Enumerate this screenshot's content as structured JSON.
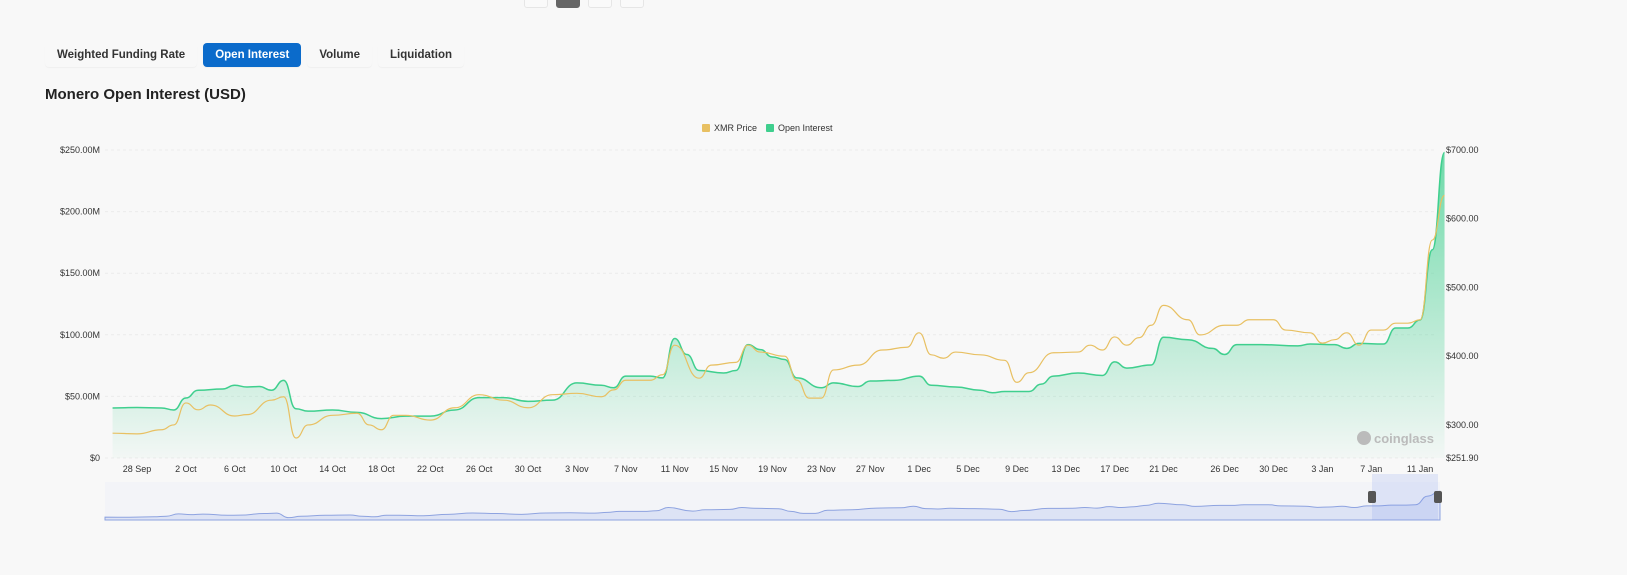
{
  "tabs": [
    {
      "label": "Weighted Funding Rate",
      "active": false
    },
    {
      "label": "Open Interest",
      "active": true
    },
    {
      "label": "Volume",
      "active": false
    },
    {
      "label": "Liquidation",
      "active": false
    }
  ],
  "title": "Monero Open Interest (USD)",
  "watermark": "coinglass",
  "chart_data": {
    "type": "area+line",
    "legend_position": "top-center",
    "series": [
      {
        "name": "XMR Price",
        "type": "line",
        "axis": "right",
        "color": "#e8c062",
        "points": [
          [
            "26 Sep",
            288
          ],
          [
            "28 Sep",
            287
          ],
          [
            "30 Sep",
            293
          ],
          [
            "1 Oct",
            300
          ],
          [
            "2 Oct",
            332
          ],
          [
            "3 Oct",
            322
          ],
          [
            "4 Oct",
            329
          ],
          [
            "6 Oct",
            313
          ],
          [
            "7 Oct",
            315
          ],
          [
            "9 Oct",
            336
          ],
          [
            "10 Oct",
            341
          ],
          [
            "11 Oct",
            281
          ],
          [
            "12 Oct",
            300
          ],
          [
            "14 Oct",
            314
          ],
          [
            "16 Oct",
            317
          ],
          [
            "17 Oct",
            300
          ],
          [
            "18 Oct",
            293
          ],
          [
            "19 Oct",
            314
          ],
          [
            "20 Oct",
            314
          ],
          [
            "22 Oct",
            307
          ],
          [
            "24 Oct",
            325
          ],
          [
            "26 Oct",
            344
          ],
          [
            "28 Oct",
            336
          ],
          [
            "30 Oct",
            325
          ],
          [
            "1 Nov",
            344
          ],
          [
            "3 Nov",
            346
          ],
          [
            "5 Nov",
            341
          ],
          [
            "6 Nov",
            351
          ],
          [
            "7 Nov",
            365
          ],
          [
            "9 Nov",
            365
          ],
          [
            "10 Nov",
            373
          ],
          [
            "11 Nov",
            416
          ],
          [
            "13 Nov",
            368
          ],
          [
            "14 Nov",
            387
          ],
          [
            "16 Nov",
            391
          ],
          [
            "17 Nov",
            416
          ],
          [
            "18 Nov",
            406
          ],
          [
            "20 Nov",
            400
          ],
          [
            "21 Nov",
            365
          ],
          [
            "22 Nov",
            339
          ],
          [
            "23 Nov",
            339
          ],
          [
            "24 Nov",
            380
          ],
          [
            "26 Nov",
            387
          ],
          [
            "28 Nov",
            409
          ],
          [
            "30 Nov",
            413
          ],
          [
            "1 Dec",
            434
          ],
          [
            "2 Dec",
            402
          ],
          [
            "3 Dec",
            397
          ],
          [
            "4 Dec",
            406
          ],
          [
            "6 Dec",
            402
          ],
          [
            "8 Dec",
            394
          ],
          [
            "9 Dec",
            362
          ],
          [
            "10 Dec",
            376
          ],
          [
            "12 Dec",
            405
          ],
          [
            "14 Dec",
            406
          ],
          [
            "15 Dec",
            416
          ],
          [
            "16 Dec",
            409
          ],
          [
            "17 Dec",
            428
          ],
          [
            "18 Dec",
            416
          ],
          [
            "19 Dec",
            427
          ],
          [
            "20 Dec",
            445
          ],
          [
            "21 Dec",
            474
          ],
          [
            "23 Dec",
            453
          ],
          [
            "24 Dec",
            431
          ],
          [
            "26 Dec",
            445
          ],
          [
            "27 Dec",
            445
          ],
          [
            "28 Dec",
            453
          ],
          [
            "30 Dec",
            453
          ],
          [
            "31 Dec",
            438
          ],
          [
            "2 Jan",
            434
          ],
          [
            "3 Jan",
            419
          ],
          [
            "4 Jan",
            424
          ],
          [
            "5 Jan",
            434
          ],
          [
            "6 Jan",
            416
          ],
          [
            "7 Jan",
            438
          ],
          [
            "8 Jan",
            438
          ],
          [
            "9 Jan",
            448
          ],
          [
            "10 Jan",
            448
          ],
          [
            "11 Jan",
            453
          ],
          [
            "12 Jan",
            569
          ],
          [
            "13 Jan",
            634
          ]
        ]
      },
      {
        "name": "Open Interest",
        "type": "area",
        "axis": "left",
        "color": "#3fcf8e",
        "points": [
          [
            "26 Sep",
            40.6
          ],
          [
            "28 Sep",
            41
          ],
          [
            "30 Sep",
            40.6
          ],
          [
            "1 Oct",
            39
          ],
          [
            "2 Oct",
            48.7
          ],
          [
            "3 Oct",
            55
          ],
          [
            "5 Oct",
            56
          ],
          [
            "6 Oct",
            59
          ],
          [
            "7 Oct",
            57.6
          ],
          [
            "8 Oct",
            58
          ],
          [
            "9 Oct",
            55
          ],
          [
            "10 Oct",
            63
          ],
          [
            "11 Oct",
            40
          ],
          [
            "12 Oct",
            38
          ],
          [
            "14 Oct",
            39
          ],
          [
            "16 Oct",
            37
          ],
          [
            "18 Oct",
            32
          ],
          [
            "20 Oct",
            34
          ],
          [
            "22 Oct",
            34
          ],
          [
            "24 Oct",
            39
          ],
          [
            "26 Oct",
            49
          ],
          [
            "28 Oct",
            49
          ],
          [
            "30 Oct",
            46
          ],
          [
            "1 Nov",
            47
          ],
          [
            "3 Nov",
            61
          ],
          [
            "5 Nov",
            59
          ],
          [
            "6 Nov",
            57
          ],
          [
            "7 Nov",
            66.5
          ],
          [
            "9 Nov",
            66.5
          ],
          [
            "10 Nov",
            65
          ],
          [
            "11 Nov",
            97
          ],
          [
            "12 Nov",
            84
          ],
          [
            "13 Nov",
            71
          ],
          [
            "15 Nov",
            69
          ],
          [
            "16 Nov",
            71
          ],
          [
            "17 Nov",
            92
          ],
          [
            "18 Nov",
            88
          ],
          [
            "19 Nov",
            82
          ],
          [
            "20 Nov",
            80
          ],
          [
            "21 Nov",
            65
          ],
          [
            "23 Nov",
            57
          ],
          [
            "24 Nov",
            61
          ],
          [
            "26 Nov",
            58
          ],
          [
            "27 Nov",
            62.5
          ],
          [
            "29 Nov",
            63
          ],
          [
            "1 Dec",
            66.5
          ],
          [
            "2 Dec",
            59
          ],
          [
            "4 Dec",
            57.6
          ],
          [
            "6 Dec",
            55
          ],
          [
            "7 Dec",
            53
          ],
          [
            "8 Dec",
            54
          ],
          [
            "10 Dec",
            54
          ],
          [
            "11 Dec",
            60
          ],
          [
            "12 Dec",
            66.5
          ],
          [
            "14 Dec",
            69
          ],
          [
            "16 Dec",
            67
          ],
          [
            "17 Dec",
            78
          ],
          [
            "18 Dec",
            73
          ],
          [
            "20 Dec",
            75.5
          ],
          [
            "21 Dec",
            98
          ],
          [
            "23 Dec",
            96
          ],
          [
            "25 Dec",
            89
          ],
          [
            "26 Dec",
            84
          ],
          [
            "27 Dec",
            92
          ],
          [
            "29 Dec",
            92
          ],
          [
            "1 Jan",
            91
          ],
          [
            "2 Jan",
            92.5
          ],
          [
            "4 Jan",
            92
          ],
          [
            "5 Jan",
            89
          ],
          [
            "6 Jan",
            93
          ],
          [
            "8 Jan",
            92.5
          ],
          [
            "9 Jan",
            105.5
          ],
          [
            "10 Jan",
            105.5
          ],
          [
            "11 Jan",
            112
          ],
          [
            "12 Jan",
            169
          ],
          [
            "13 Jan",
            248
          ]
        ]
      }
    ],
    "x_ticks": [
      "28 Sep",
      "2 Oct",
      "6 Oct",
      "10 Oct",
      "14 Oct",
      "18 Oct",
      "22 Oct",
      "26 Oct",
      "30 Oct",
      "3 Nov",
      "7 Nov",
      "11 Nov",
      "15 Nov",
      "19 Nov",
      "23 Nov",
      "27 Nov",
      "1 Dec",
      "5 Dec",
      "9 Dec",
      "13 Dec",
      "17 Dec",
      "21 Dec",
      "26 Dec",
      "30 Dec",
      "3 Jan",
      "7 Jan",
      "11 Jan"
    ],
    "left_axis": {
      "ylim": [
        0,
        250
      ],
      "unit": "M USD",
      "ticks": [
        "$0",
        "$50.00M",
        "$100.00M",
        "$150.00M",
        "$200.00M",
        "$250.00M"
      ]
    },
    "right_axis": {
      "ylim": [
        251.9,
        700
      ],
      "ticks": [
        "$251.90",
        "$300.00",
        "$400.00",
        "$500.00",
        "$600.00",
        "$700.00"
      ]
    },
    "grid": true
  }
}
